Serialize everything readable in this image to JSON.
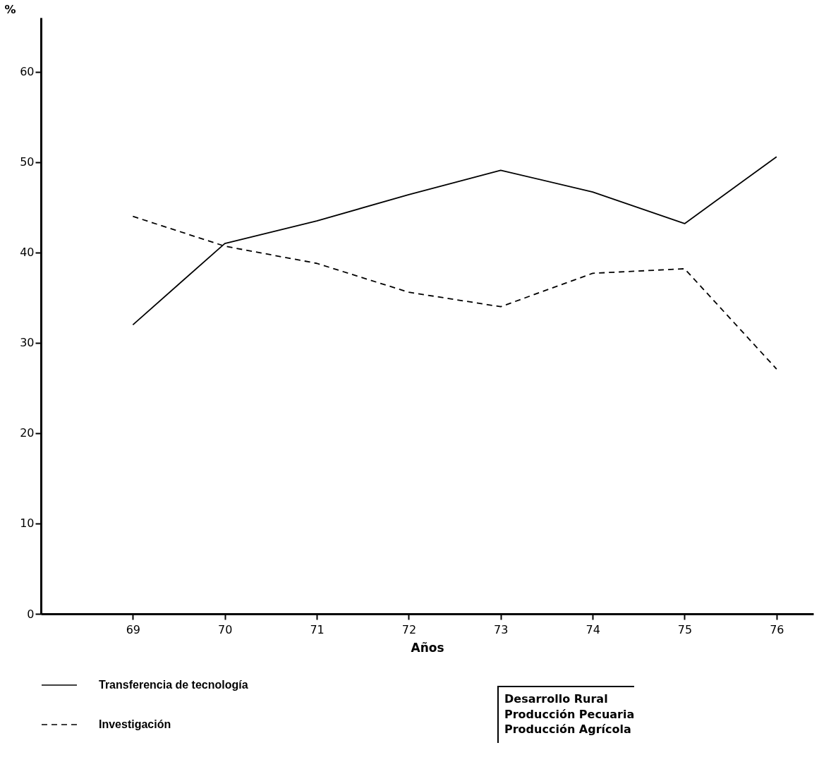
{
  "chart_data": {
    "type": "line",
    "ylabel": "%",
    "xlabel": "Años",
    "x": [
      69,
      70,
      71,
      72,
      73,
      74,
      75,
      76
    ],
    "xlim": [
      68,
      76.4
    ],
    "xticks": [
      69,
      70,
      71,
      72,
      73,
      74,
      75,
      76
    ],
    "ylim": [
      0,
      66
    ],
    "yticks": [
      0,
      10,
      20,
      30,
      40,
      50,
      60
    ],
    "grid": false,
    "legend": "bottom",
    "marker": "none",
    "series": [
      {
        "name": "Transferencia de tecnología",
        "color": "#000000",
        "line_style": "solid",
        "values": [
          32,
          41,
          43.5,
          46.4,
          49.1,
          46.7,
          43.2,
          50.6
        ]
      },
      {
        "name": "Investigación",
        "color": "#000000",
        "line_style": "dashed",
        "values": [
          44,
          40.7,
          38.8,
          35.6,
          34,
          37.7,
          38.2,
          27.1
        ]
      }
    ],
    "annotations": [
      "Desarrollo Rural\nProducción Pecuaria\nProducción Agrícola"
    ]
  }
}
